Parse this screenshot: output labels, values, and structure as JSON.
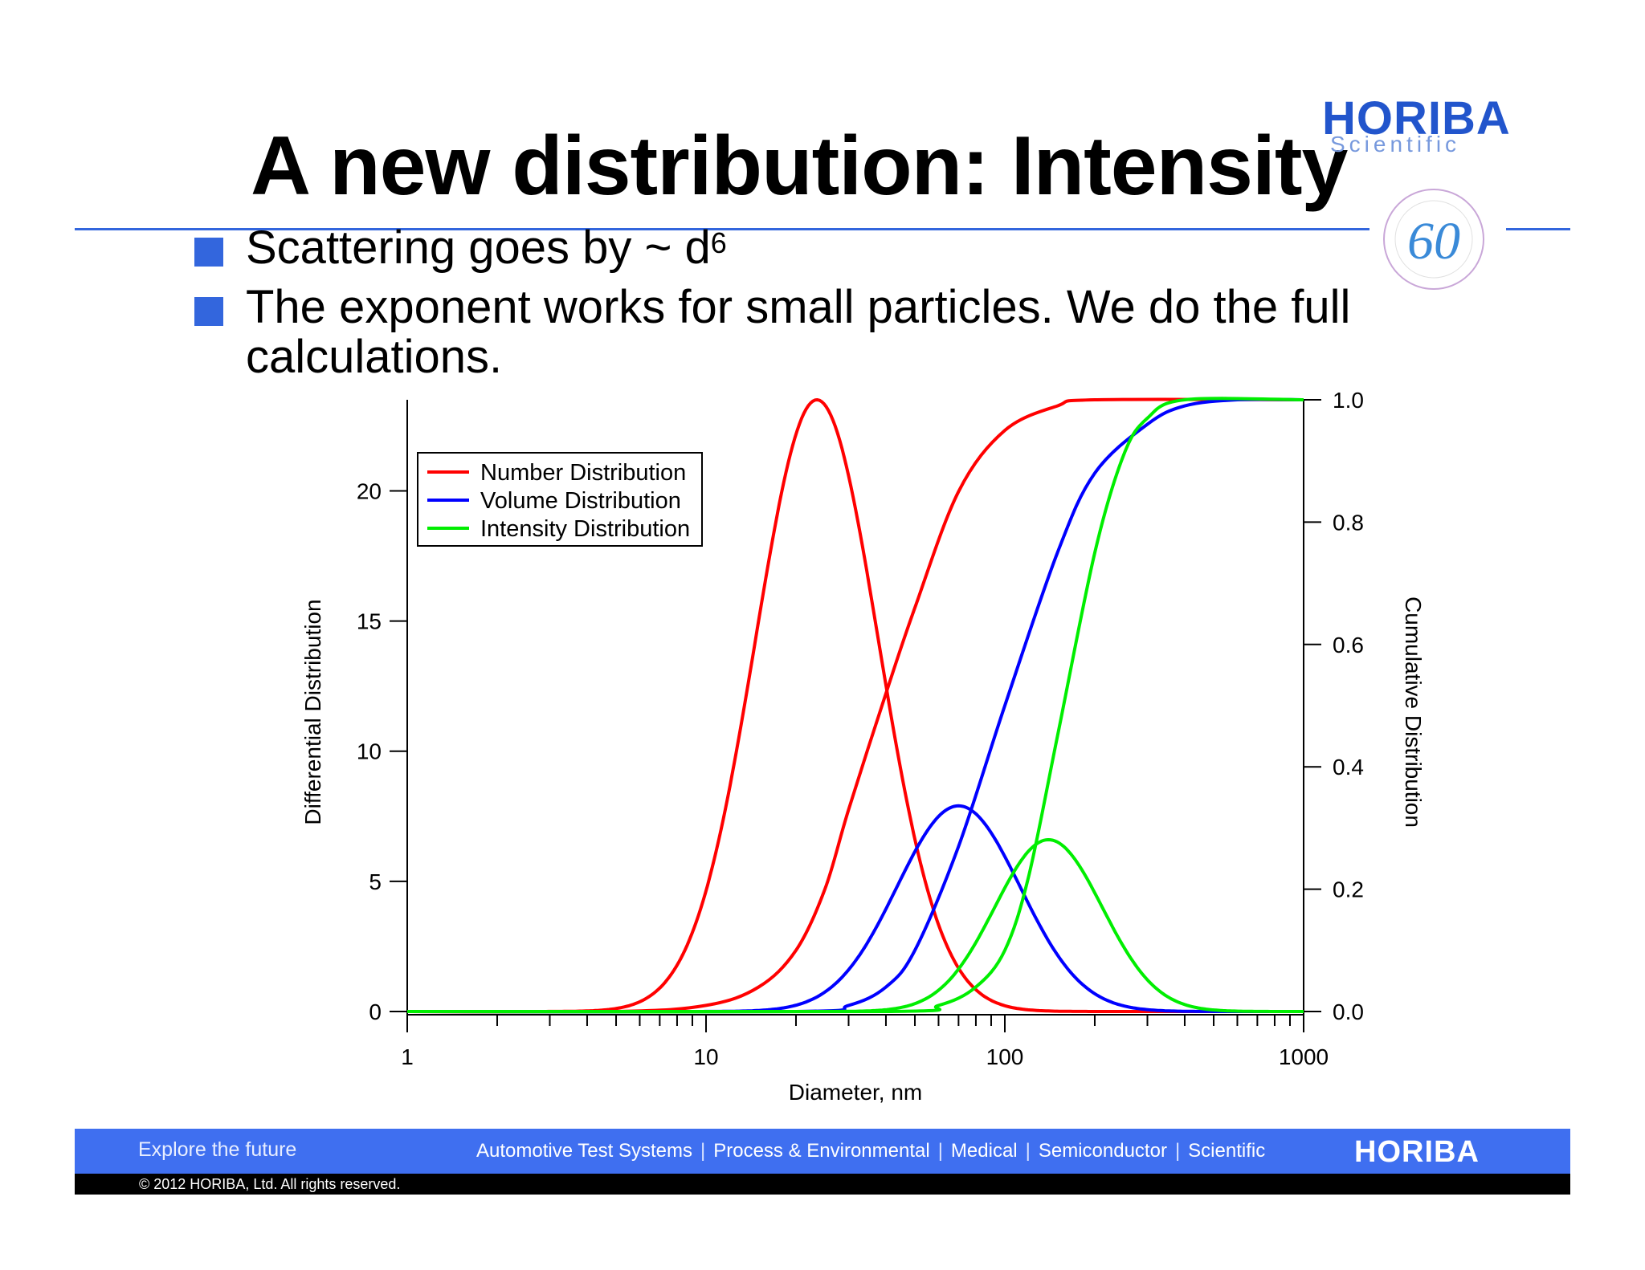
{
  "slide": {
    "title": "A new distribution:  Intensity",
    "logo": {
      "brand": "HORIBA",
      "sub": "Scientific",
      "badge": "60"
    },
    "bullets": [
      {
        "text": "Scattering goes by ~ d",
        "sup": "6"
      },
      {
        "text": "The exponent works for small particles.  We do the full calculations.",
        "sup": ""
      }
    ]
  },
  "footer": {
    "tagline": "Explore the future",
    "nav": [
      "Automotive Test Systems",
      "Process & Environmental",
      "Medical",
      "Semiconductor",
      "Scientific"
    ],
    "brand": "HORIBA",
    "copyright": "© 2012 HORIBA, Ltd. All rights reserved."
  },
  "chart_data": {
    "type": "line",
    "title": "",
    "xlabel": "Diameter, nm",
    "ylabel_left": "Differential Distribution",
    "ylabel_right": "Cumulative Distribution",
    "x_scale": "log",
    "xlim": [
      1,
      1000
    ],
    "ylim_left": [
      0,
      23.5
    ],
    "ylim_right": [
      0,
      1.0
    ],
    "x_ticks": [
      "1",
      "10",
      "100",
      "1000"
    ],
    "y_ticks_left": [
      "0",
      "5",
      "10",
      "15",
      "20"
    ],
    "y_ticks_right": [
      "0.0",
      "0.2",
      "0.4",
      "0.6",
      "0.8",
      "1.0"
    ],
    "legend_position": "top-left",
    "series": [
      {
        "name": "Number Distribution",
        "color": "#ff0000",
        "differential": {
          "peak_x": 23.5,
          "peak_y": 23.5,
          "log_sigma": 0.206
        },
        "cumulative": [
          [
            1,
            0
          ],
          [
            5,
            0.0
          ],
          [
            10,
            0.01
          ],
          [
            15,
            0.04
          ],
          [
            20,
            0.1
          ],
          [
            25,
            0.2
          ],
          [
            30,
            0.33
          ],
          [
            40,
            0.52
          ],
          [
            50,
            0.66
          ],
          [
            70,
            0.85
          ],
          [
            100,
            0.95
          ],
          [
            150,
            0.99
          ],
          [
            200,
            1.0
          ],
          [
            1000,
            1.0
          ]
        ]
      },
      {
        "name": "Volume Distribution",
        "color": "#0000ff",
        "differential": {
          "peak_x": 70,
          "peak_y": 7.9,
          "log_sigma": 0.206
        },
        "cumulative": [
          [
            1,
            0
          ],
          [
            20,
            0.0
          ],
          [
            30,
            0.01
          ],
          [
            40,
            0.04
          ],
          [
            50,
            0.1
          ],
          [
            70,
            0.27
          ],
          [
            100,
            0.5
          ],
          [
            150,
            0.75
          ],
          [
            200,
            0.88
          ],
          [
            300,
            0.96
          ],
          [
            400,
            0.99
          ],
          [
            600,
            1.0
          ],
          [
            1000,
            1.0
          ]
        ]
      },
      {
        "name": "Intensity Distribution",
        "color": "#00ee00",
        "differential": {
          "peak_x": 140,
          "peak_y": 6.6,
          "log_sigma": 0.18
        },
        "cumulative": [
          [
            1,
            0
          ],
          [
            40,
            0.0
          ],
          [
            60,
            0.01
          ],
          [
            80,
            0.04
          ],
          [
            100,
            0.1
          ],
          [
            120,
            0.22
          ],
          [
            150,
            0.45
          ],
          [
            200,
            0.75
          ],
          [
            250,
            0.91
          ],
          [
            300,
            0.97
          ],
          [
            400,
            1.0
          ],
          [
            1000,
            1.0
          ]
        ]
      }
    ]
  }
}
